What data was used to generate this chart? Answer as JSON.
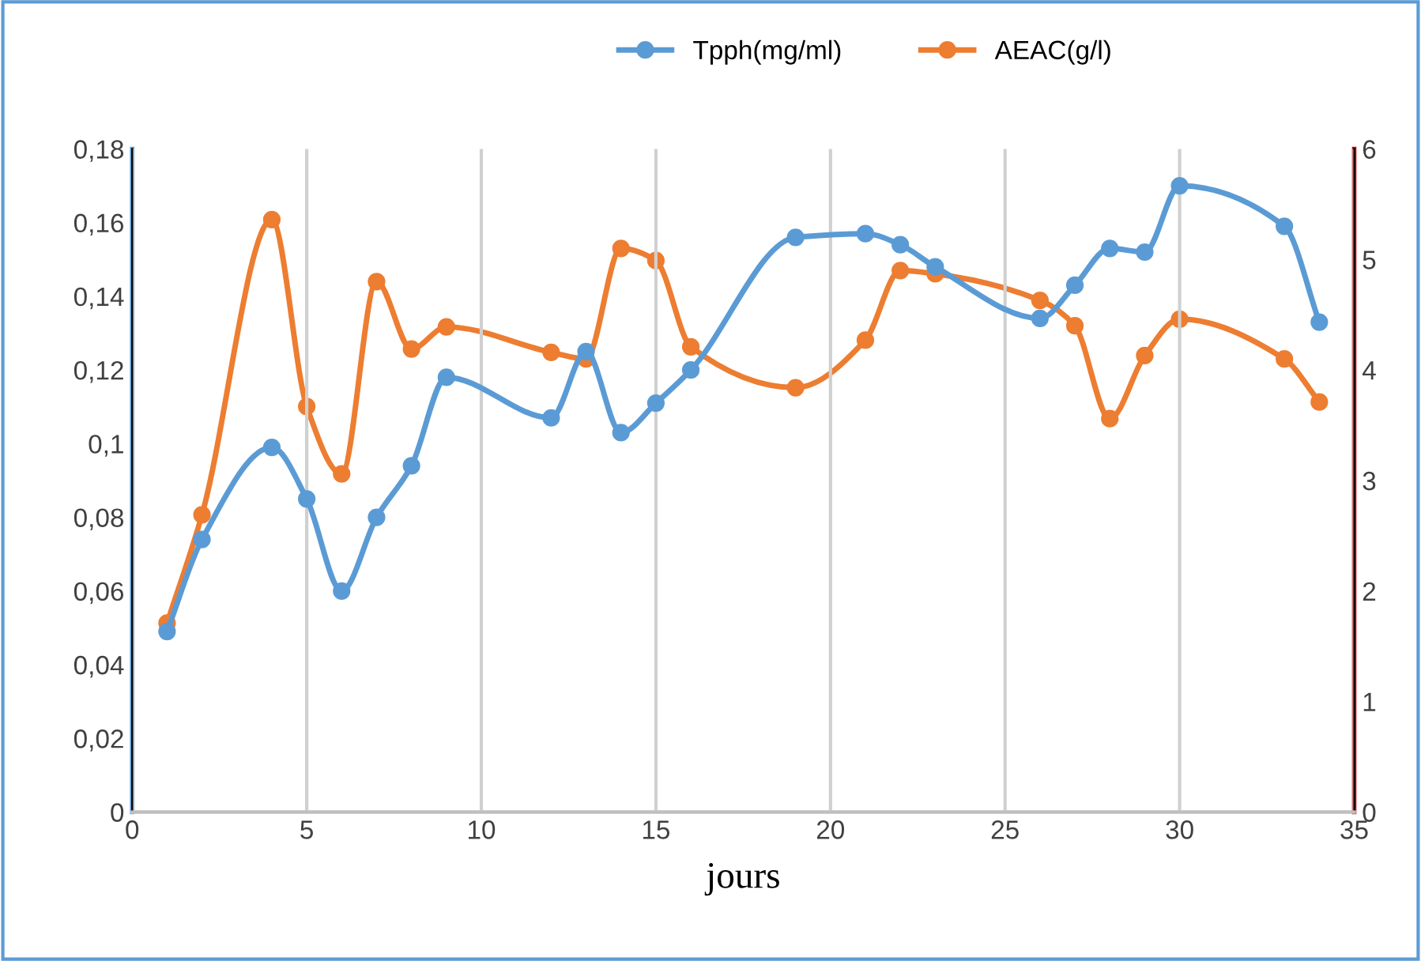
{
  "chart_data": {
    "type": "line",
    "xlabel": "jours",
    "legend": "top",
    "grid": "x",
    "marker": "circle",
    "xlim": [
      0,
      35
    ],
    "xticks": [
      0,
      5,
      10,
      15,
      20,
      25,
      30,
      35
    ],
    "ylim": [
      0,
      0.18
    ],
    "yticks": [
      0,
      {
        "value": 0.02,
        "label": "0,02"
      },
      {
        "value": 0.04,
        "label": "0,04"
      },
      {
        "value": 0.06,
        "label": "0,06"
      },
      {
        "value": 0.08,
        "label": "0,08"
      },
      {
        "value": 0.1,
        "label": "0,1"
      },
      {
        "value": 0.12,
        "label": "0,12"
      },
      {
        "value": 0.14,
        "label": "0,14"
      },
      {
        "value": 0.16,
        "label": "0,16"
      },
      {
        "value": 0.18,
        "label": "0,18"
      }
    ],
    "y2lim": [
      0,
      6
    ],
    "y2ticks": [
      0,
      1,
      2,
      3,
      4,
      5,
      6
    ],
    "series": [
      {
        "name": "Tpph(mg/ml)",
        "color": "#5b9bd5",
        "x": [
          1,
          2,
          4,
          5,
          6,
          7,
          8,
          9,
          12,
          13,
          14,
          15,
          16,
          19,
          21,
          22,
          23,
          26,
          27,
          28,
          29,
          30,
          33,
          34
        ],
        "values": [
          0.049,
          0.074,
          0.099,
          0.085,
          0.06,
          0.08,
          0.094,
          0.118,
          0.107,
          0.125,
          0.103,
          0.111,
          0.12,
          0.156,
          0.157,
          0.154,
          0.148,
          0.134,
          0.143,
          0.153,
          0.152,
          0.17,
          0.159,
          0.133
        ]
      },
      {
        "name": "AEAC(g/l)",
        "color": "#ed7d31",
        "axis": "y2",
        "x": [
          1,
          2,
          4,
          5,
          6,
          7,
          8,
          9,
          12,
          13,
          14,
          15,
          16,
          19,
          21,
          22,
          23,
          26,
          27,
          28,
          29,
          30,
          33,
          34
        ],
        "values": [
          1.71,
          2.69,
          5.36,
          3.67,
          3.06,
          4.8,
          4.19,
          4.39,
          4.16,
          4.1,
          5.1,
          4.99,
          4.21,
          3.84,
          4.27,
          4.9,
          4.87,
          4.63,
          4.4,
          3.56,
          4.13,
          4.46,
          4.1,
          3.71
        ]
      }
    ]
  }
}
